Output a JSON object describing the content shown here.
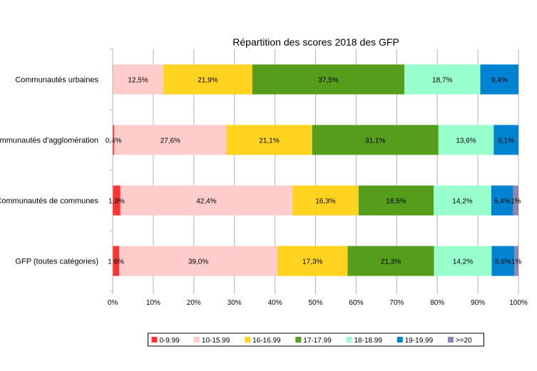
{
  "chart_data": {
    "type": "bar",
    "orientation": "horizontal",
    "stacked": "percent",
    "title": "Répartition des scores 2018 des GFP",
    "xlabel": "",
    "ylabel": "",
    "xlim": [
      0,
      100
    ],
    "x_ticks": [
      "0%",
      "10%",
      "20%",
      "30%",
      "40%",
      "50%",
      "60%",
      "70%",
      "80%",
      "90%",
      "100%"
    ],
    "grid": "vertical",
    "legend_position": "bottom",
    "categories": [
      "Communautés urbaines",
      "Communautés d'agglomération",
      "Communautés de communes",
      "GFP (toutes catégories)"
    ],
    "series": [
      {
        "name": "0-9.99",
        "color": "#ff3333",
        "values": [
          0,
          0.4,
          1.9,
          1.6
        ],
        "labels": [
          "",
          "0,4%",
          "1,9%",
          "1,6%"
        ]
      },
      {
        "name": "10-15.99",
        "color": "#ffcccc",
        "values": [
          12.5,
          27.6,
          42.4,
          39.0
        ],
        "labels": [
          "12,5%",
          "27,6%",
          "42,4%",
          "39,0%"
        ]
      },
      {
        "name": "16-16.99",
        "color": "#ffd320",
        "values": [
          21.9,
          21.1,
          16.3,
          17.3
        ],
        "labels": [
          "21,9%",
          "21,1%",
          "16,3%",
          "17,3%"
        ]
      },
      {
        "name": "17-17.99",
        "color": "#579d1c",
        "values": [
          37.5,
          31.1,
          18.5,
          21.3
        ],
        "labels": [
          "37,5%",
          "31,1%",
          "18,5%",
          "21,3%"
        ]
      },
      {
        "name": "18-18.99",
        "color": "#99ffcc",
        "values": [
          18.7,
          13.6,
          14.2,
          14.2
        ],
        "labels": [
          "18,7%",
          "13,6%",
          "14,2%",
          "14,2%"
        ]
      },
      {
        "name": "19-19.99",
        "color": "#0084d1",
        "values": [
          9.4,
          6.1,
          5.4,
          5.6
        ],
        "labels": [
          "9,4%",
          "6,1%",
          "5,4%",
          "5,6%"
        ]
      },
      {
        "name": ">=20",
        "color": "#8e86ae",
        "values": [
          0,
          0,
          1.3,
          1.0
        ],
        "labels": [
          "",
          "",
          "1%",
          "1%"
        ]
      }
    ]
  }
}
